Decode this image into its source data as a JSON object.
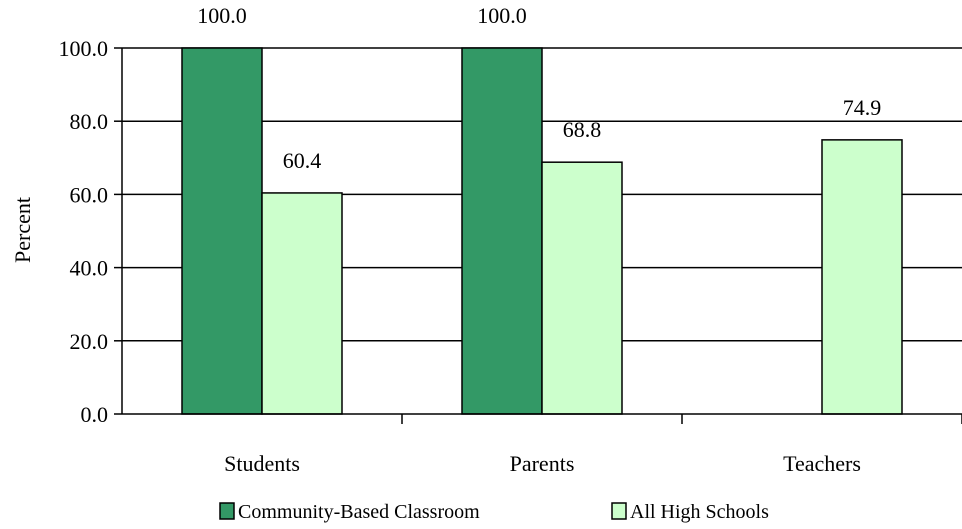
{
  "chart_data": {
    "type": "bar",
    "categories": [
      "Students",
      "Parents",
      "Teachers"
    ],
    "series": [
      {
        "name": "Community-Based Classroom",
        "color": "#339966",
        "values": [
          100.0,
          100.0,
          null
        ],
        "labels": [
          "100.0",
          "100.0",
          ""
        ]
      },
      {
        "name": "All High Schools",
        "color": "#ccffcc",
        "values": [
          60.4,
          68.8,
          74.9
        ],
        "labels": [
          "60.4",
          "68.8",
          "74.9"
        ]
      }
    ],
    "title": "",
    "xlabel": "",
    "ylabel": "Percent",
    "ylim": [
      0,
      100
    ],
    "y_ticks": [
      "0.0",
      "20.0",
      "40.0",
      "60.0",
      "80.0",
      "100.0"
    ],
    "grid": true,
    "legend_position": "bottom"
  }
}
